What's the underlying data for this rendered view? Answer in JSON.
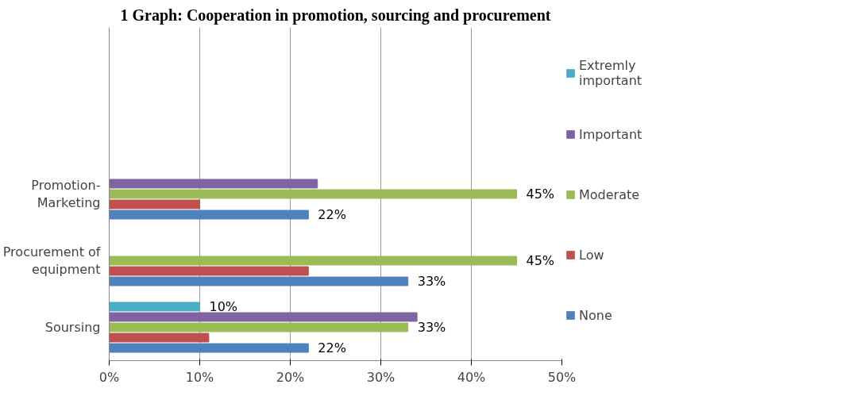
{
  "chart_data": {
    "type": "bar",
    "orientation": "horizontal",
    "title": "1 Graph: Cooperation in promotion, sourcing and procurement",
    "categories": [
      null,
      null,
      "Promotion-\nMarketing",
      "Procurement of\nequipment",
      "Soursing"
    ],
    "series": [
      {
        "name": "None",
        "color": "#4f81bd",
        "values": [
          null,
          null,
          22,
          33,
          22
        ],
        "value_labels": [
          null,
          null,
          "22%",
          "33%",
          "22%"
        ]
      },
      {
        "name": "Low",
        "color": "#c0504d",
        "values": [
          null,
          null,
          10,
          22,
          11
        ]
      },
      {
        "name": "Moderate",
        "color": "#9bbb59",
        "values": [
          null,
          null,
          45,
          45,
          33
        ],
        "value_labels": [
          null,
          null,
          "45%",
          "45%",
          "33%"
        ]
      },
      {
        "name": "Important",
        "color": "#8064a2",
        "values": [
          null,
          null,
          23,
          null,
          34
        ]
      },
      {
        "name": "Extremly\nimportant",
        "color": "#4bacc6",
        "values": [
          null,
          null,
          null,
          null,
          10
        ],
        "value_labels": [
          null,
          null,
          null,
          null,
          "10%"
        ]
      }
    ],
    "xlim": [
      0,
      50
    ],
    "xticks": [
      {
        "value": 0,
        "label": "0%"
      },
      {
        "value": 10,
        "label": "10%"
      },
      {
        "value": 20,
        "label": "20%"
      },
      {
        "value": 30,
        "label": "30%"
      },
      {
        "value": 40,
        "label": "40%"
      },
      {
        "value": 50,
        "label": "50%"
      }
    ],
    "grid": "x",
    "legend": "right"
  }
}
